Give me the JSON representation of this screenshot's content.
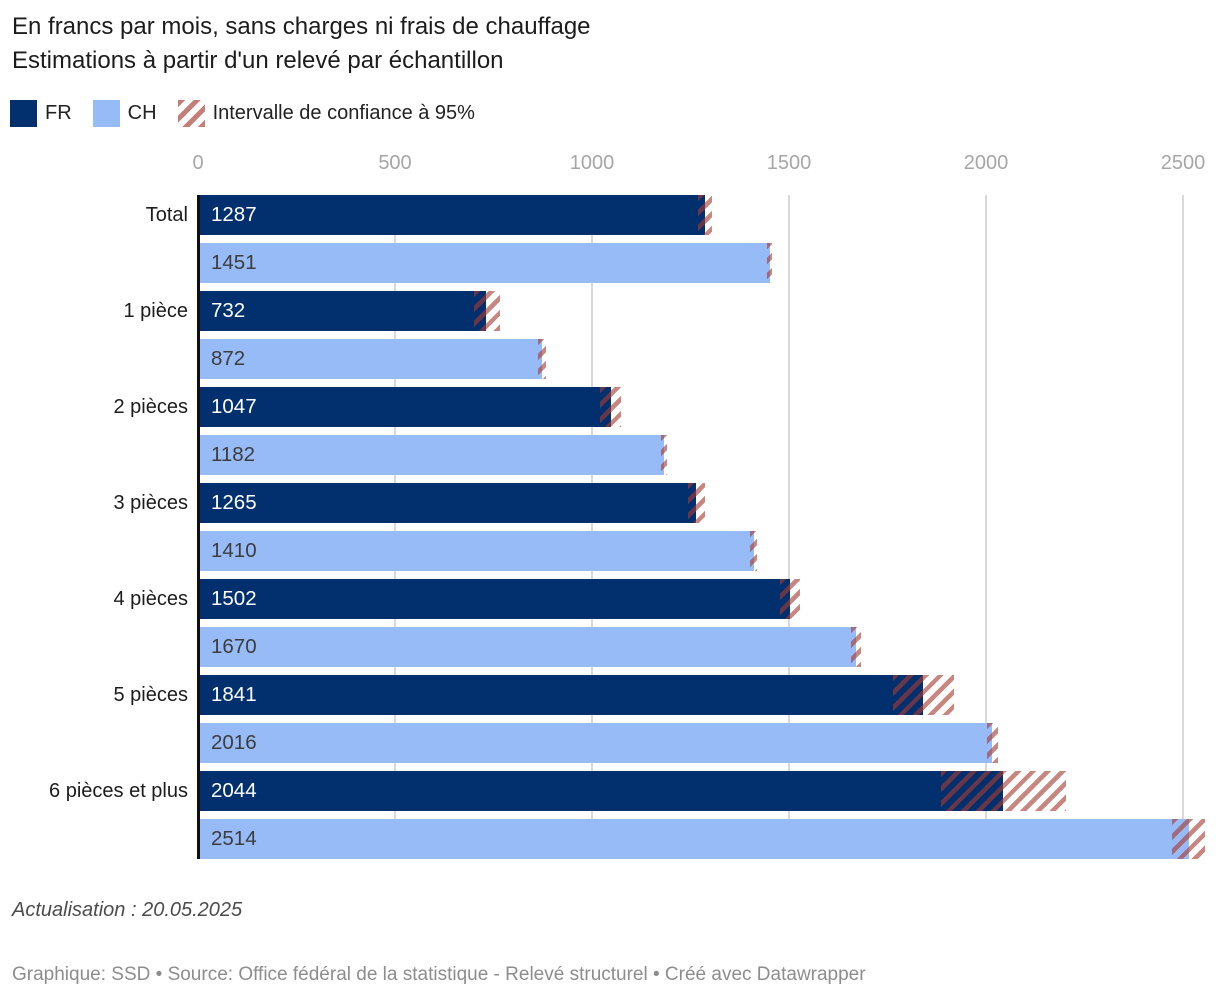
{
  "header": {
    "title_line1": "En francs par mois, sans charges ni frais de chauffage",
    "title_line2": "Estimations à partir d'un relevé par échantillon"
  },
  "legend": {
    "items": [
      {
        "label": "FR",
        "swatch": "solid",
        "color": "#02306e"
      },
      {
        "label": "CH",
        "swatch": "solid",
        "color": "#96bbf7"
      },
      {
        "label": "Intervalle de confiance à 95%",
        "swatch": "hatch",
        "color": "#a83a30"
      }
    ]
  },
  "chart_data": {
    "type": "bar",
    "orientation": "horizontal",
    "title": "En francs par mois, sans charges ni frais de chauffage",
    "subtitle": "Estimations à partir d'un relevé par échantillon",
    "categories": [
      "Total",
      "1 pièce",
      "2 pièces",
      "3 pièces",
      "4 pièces",
      "5 pièces",
      "6 pièces et plus"
    ],
    "series": [
      {
        "name": "FR",
        "color": "#02306e",
        "values": [
          1287,
          732,
          1047,
          1265,
          1502,
          1841,
          2044
        ],
        "ci95_estimated": [
          [
            1270,
            1304
          ],
          [
            701,
            766
          ],
          [
            1021,
            1073
          ],
          [
            1244,
            1286
          ],
          [
            1477,
            1527
          ],
          [
            1764,
            1918
          ],
          [
            1886,
            2202
          ]
        ]
      },
      {
        "name": "CH",
        "color": "#96bbf7",
        "values": [
          1451,
          872,
          1182,
          1410,
          1670,
          2016,
          2514
        ],
        "ci95_estimated": [
          [
            1444,
            1458
          ],
          [
            862,
            882
          ],
          [
            1174,
            1190
          ],
          [
            1401,
            1419
          ],
          [
            1657,
            1683
          ],
          [
            2002,
            2030
          ],
          [
            2471,
            2557
          ]
        ]
      }
    ],
    "x_ticks": [
      0,
      500,
      1000,
      1500,
      2000,
      2500
    ],
    "xlim": [
      0,
      2594
    ],
    "grid": "vertical",
    "value_labels": "inside-bar-start",
    "legend_position": "top",
    "ci_legend_label": "Intervalle de confiance à 95%"
  },
  "footer": {
    "updated": "Actualisation : 20.05.2025",
    "byline": "Graphique: SSD • Source: Office fédéral de la statistique - Relevé structurel  • Créé avec Datawrapper"
  }
}
